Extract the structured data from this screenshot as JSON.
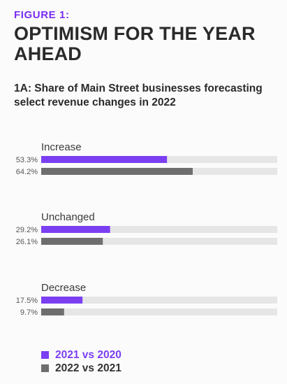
{
  "figure_label": "FIGURE 1:",
  "title": "OPTIMISM FOR THE YEAR AHEAD",
  "subtitle": "1A: Share of Main Street businesses forecasting select revenue changes in 2022",
  "colors": {
    "accent": "#7a2cf2",
    "series_2021_vs_2020": "#7b3ff2",
    "series_2022_vs_2021": "#6e6e6e",
    "track": "#e6e6e6"
  },
  "chart_data": {
    "type": "bar",
    "orientation": "horizontal",
    "categories": [
      "Increase",
      "Unchanged",
      "Decrease"
    ],
    "series": [
      {
        "name": "2021 vs 2020",
        "values": [
          53.3,
          29.2,
          17.5
        ],
        "labels": [
          "53.3%",
          "29.2%",
          "17.5%"
        ]
      },
      {
        "name": "2022 vs 2021",
        "values": [
          64.2,
          26.1,
          9.7
        ],
        "labels": [
          "64.2%",
          "26.1%",
          "9.7%"
        ]
      }
    ],
    "xlim": [
      0,
      100
    ],
    "grid": false,
    "legend_position": "bottom-left"
  }
}
